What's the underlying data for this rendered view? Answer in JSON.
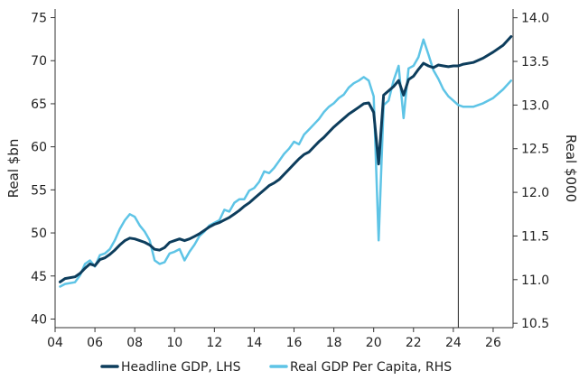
{
  "chart_data": {
    "type": "line",
    "title": "",
    "xlabel": "",
    "ylabel": "Real $bn",
    "y2label": "Real $000",
    "xlim": [
      2004,
      2027
    ],
    "ylim": [
      39,
      76
    ],
    "y2lim": [
      10.45,
      14.1
    ],
    "x_ticks": [
      2004,
      2006,
      2008,
      2010,
      2012,
      2014,
      2016,
      2018,
      2020,
      2022,
      2024,
      2026
    ],
    "x_tick_labels": [
      "04",
      "06",
      "08",
      "10",
      "12",
      "14",
      "16",
      "18",
      "20",
      "22",
      "24",
      "26"
    ],
    "y_ticks": [
      40,
      45,
      50,
      55,
      60,
      65,
      70,
      75
    ],
    "y_tick_labels": [
      "40",
      "45",
      "50",
      "55",
      "60",
      "65",
      "70",
      "75"
    ],
    "y2_ticks": [
      10.5,
      11.0,
      11.5,
      12.0,
      12.5,
      13.0,
      13.5,
      14.0
    ],
    "y2_tick_labels": [
      "10.5",
      "11.0",
      "11.5",
      "12.0",
      "12.5",
      "13.0",
      "13.5",
      "14.0"
    ],
    "reference_line_x": 2024.25,
    "grid": false,
    "legend_position": "bottom",
    "series": [
      {
        "name": "Headline GDP, LHS",
        "axis": "left",
        "color": "#0d3d5c",
        "x": [
          2004.25,
          2004.5,
          2005.0,
          2005.25,
          2005.5,
          2005.75,
          2006.0,
          2006.25,
          2006.5,
          2006.75,
          2007.0,
          2007.25,
          2007.5,
          2007.75,
          2008.0,
          2008.25,
          2008.5,
          2008.75,
          2009.0,
          2009.25,
          2009.5,
          2009.75,
          2010.0,
          2010.25,
          2010.5,
          2010.75,
          2011.0,
          2011.25,
          2011.5,
          2011.75,
          2012.0,
          2012.25,
          2012.5,
          2012.75,
          2013.0,
          2013.25,
          2013.5,
          2013.75,
          2014.0,
          2014.25,
          2014.5,
          2014.75,
          2015.0,
          2015.25,
          2015.5,
          2015.75,
          2016.0,
          2016.25,
          2016.5,
          2016.75,
          2017.0,
          2017.25,
          2017.5,
          2017.75,
          2018.0,
          2018.25,
          2018.5,
          2018.75,
          2019.0,
          2019.25,
          2019.5,
          2019.75,
          2020.0,
          2020.25,
          2020.5,
          2020.75,
          2021.0,
          2021.25,
          2021.5,
          2021.75,
          2022.0,
          2022.25,
          2022.5,
          2022.75,
          2023.0,
          2023.25,
          2023.5,
          2023.75,
          2024.0,
          2024.25,
          2024.5,
          2025.0,
          2025.5,
          2026.0,
          2026.5,
          2026.9
        ],
        "values": [
          44.3,
          44.7,
          44.9,
          45.3,
          45.9,
          46.4,
          46.2,
          46.9,
          47.1,
          47.5,
          48.0,
          48.6,
          49.1,
          49.4,
          49.3,
          49.1,
          48.9,
          48.6,
          48.1,
          48.0,
          48.3,
          48.9,
          49.1,
          49.3,
          49.1,
          49.3,
          49.6,
          49.9,
          50.3,
          50.7,
          51.0,
          51.2,
          51.5,
          51.8,
          52.2,
          52.6,
          53.1,
          53.5,
          54.0,
          54.5,
          55.0,
          55.5,
          55.8,
          56.2,
          56.8,
          57.4,
          58.0,
          58.6,
          59.1,
          59.4,
          60.0,
          60.6,
          61.1,
          61.7,
          62.3,
          62.8,
          63.3,
          63.8,
          64.2,
          64.6,
          65.0,
          65.1,
          64.0,
          58.0,
          66.0,
          66.5,
          67.0,
          67.7,
          66.0,
          67.8,
          68.2,
          69.0,
          69.7,
          69.4,
          69.2,
          69.5,
          69.4,
          69.3,
          69.4,
          69.4,
          69.6,
          69.8,
          70.3,
          71.0,
          71.8,
          72.8
        ]
      },
      {
        "name": "Real GDP Per Capita, RHS",
        "axis": "right",
        "color": "#5ec4e6",
        "x": [
          2004.25,
          2004.5,
          2005.0,
          2005.25,
          2005.5,
          2005.75,
          2006.0,
          2006.25,
          2006.5,
          2006.75,
          2007.0,
          2007.25,
          2007.5,
          2007.75,
          2008.0,
          2008.25,
          2008.5,
          2008.75,
          2009.0,
          2009.25,
          2009.5,
          2009.75,
          2010.0,
          2010.25,
          2010.5,
          2010.75,
          2011.0,
          2011.25,
          2011.5,
          2011.75,
          2012.0,
          2012.25,
          2012.5,
          2012.75,
          2013.0,
          2013.25,
          2013.5,
          2013.75,
          2014.0,
          2014.25,
          2014.5,
          2014.75,
          2015.0,
          2015.25,
          2015.5,
          2015.75,
          2016.0,
          2016.25,
          2016.5,
          2016.75,
          2017.0,
          2017.25,
          2017.5,
          2017.75,
          2018.0,
          2018.25,
          2018.5,
          2018.75,
          2019.0,
          2019.25,
          2019.5,
          2019.75,
          2020.0,
          2020.25,
          2020.5,
          2020.75,
          2021.0,
          2021.25,
          2021.5,
          2021.75,
          2022.0,
          2022.25,
          2022.5,
          2022.75,
          2023.0,
          2023.25,
          2023.5,
          2023.75,
          2024.0,
          2024.25,
          2024.5,
          2025.0,
          2025.5,
          2026.0,
          2026.5,
          2026.9
        ],
        "values": [
          10.92,
          10.95,
          10.97,
          11.05,
          11.18,
          11.22,
          11.15,
          11.28,
          11.3,
          11.35,
          11.45,
          11.58,
          11.68,
          11.75,
          11.72,
          11.62,
          11.55,
          11.45,
          11.22,
          11.18,
          11.2,
          11.3,
          11.32,
          11.35,
          11.22,
          11.32,
          11.4,
          11.5,
          11.55,
          11.62,
          11.65,
          11.68,
          11.8,
          11.78,
          11.88,
          11.92,
          11.92,
          12.02,
          12.05,
          12.12,
          12.24,
          12.22,
          12.28,
          12.36,
          12.44,
          12.5,
          12.58,
          12.55,
          12.66,
          12.72,
          12.78,
          12.84,
          12.92,
          12.98,
          13.02,
          13.08,
          13.12,
          13.2,
          13.25,
          13.28,
          13.32,
          13.28,
          13.1,
          11.45,
          13.0,
          13.05,
          13.28,
          13.45,
          12.85,
          13.42,
          13.45,
          13.55,
          13.75,
          13.58,
          13.4,
          13.3,
          13.18,
          13.1,
          13.05,
          13.0,
          12.98,
          12.98,
          13.02,
          13.08,
          13.18,
          13.28
        ]
      }
    ]
  }
}
